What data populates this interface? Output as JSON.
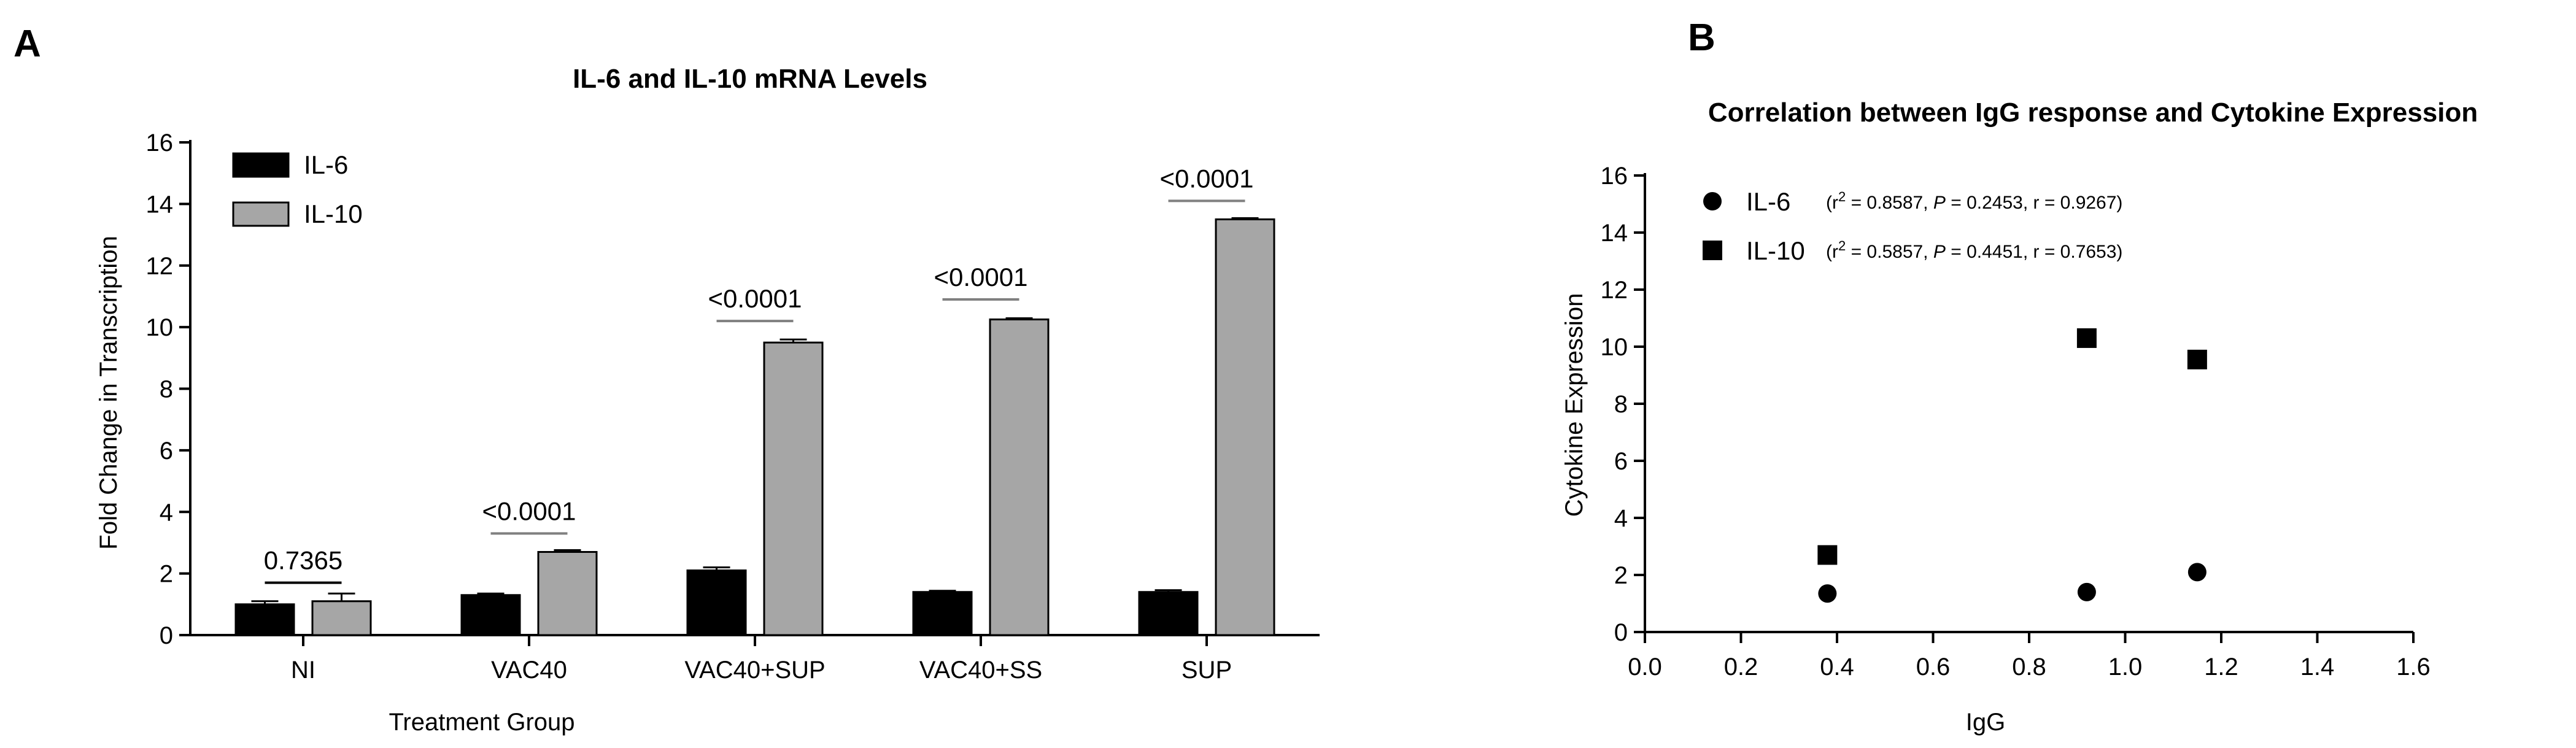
{
  "panel_a_letter": "A",
  "panel_b_letter": "B",
  "chart_data": [
    {
      "type": "bar",
      "title": "IL-6 and IL-10 mRNA Levels",
      "xlabel": "Treatment Group",
      "ylabel": "Fold Change in Transcription",
      "ylim": [
        0,
        16
      ],
      "yticks": [
        0,
        2,
        4,
        6,
        8,
        10,
        12,
        14,
        16
      ],
      "categories": [
        "NI",
        "VAC40",
        "VAC40+SUP",
        "VAC40+SS",
        "SUP"
      ],
      "series": [
        {
          "name": "IL-6",
          "color": "#000000",
          "values": [
            1.0,
            1.3,
            2.1,
            1.4,
            1.4
          ],
          "errors": [
            0.1,
            0.05,
            0.1,
            0.04,
            0.06
          ]
        },
        {
          "name": "IL-10",
          "color": "#a6a6a6",
          "values": [
            1.1,
            2.7,
            9.5,
            10.25,
            13.5
          ],
          "errors": [
            0.25,
            0.06,
            0.1,
            0.04,
            0.04
          ]
        }
      ],
      "annotations": [
        "0.7365",
        "<0.0001",
        "<0.0001",
        "<0.0001",
        "<0.0001"
      ],
      "annotation_bar_levels": [
        1.7,
        3.3,
        10.2,
        10.9,
        14.1
      ],
      "legend_position": "top-left",
      "grid": false
    },
    {
      "type": "scatter",
      "title": "Correlation between IgG response and Cytokine Expression",
      "xlabel": "IgG",
      "ylabel": "Cytokine Expression",
      "xlim": [
        0.0,
        1.6
      ],
      "ylim": [
        0,
        16
      ],
      "xticks": [
        "0.0",
        "0.2",
        "0.4",
        "0.6",
        "0.8",
        "1.0",
        "1.2",
        "1.4",
        "1.6"
      ],
      "yticks": [
        0,
        2,
        4,
        6,
        8,
        10,
        12,
        14,
        16
      ],
      "series": [
        {
          "name": "IL-6",
          "marker": "circle",
          "stats": [
            "(r",
            "2",
            " = 0.8587, ",
            "P",
            " = 0.2453, r = 0.9267)"
          ],
          "points": [
            [
              0.38,
              1.35
            ],
            [
              0.92,
              1.4
            ],
            [
              1.15,
              2.1
            ]
          ]
        },
        {
          "name": "IL-10",
          "marker": "square",
          "stats": [
            "(r",
            "2",
            " = 0.5857, ",
            "P",
            " = 0.4451, r = 0.7653)"
          ],
          "points": [
            [
              0.38,
              2.7
            ],
            [
              0.92,
              10.3
            ],
            [
              1.15,
              9.55
            ]
          ]
        }
      ],
      "legend_position": "top-left",
      "grid": false
    }
  ]
}
